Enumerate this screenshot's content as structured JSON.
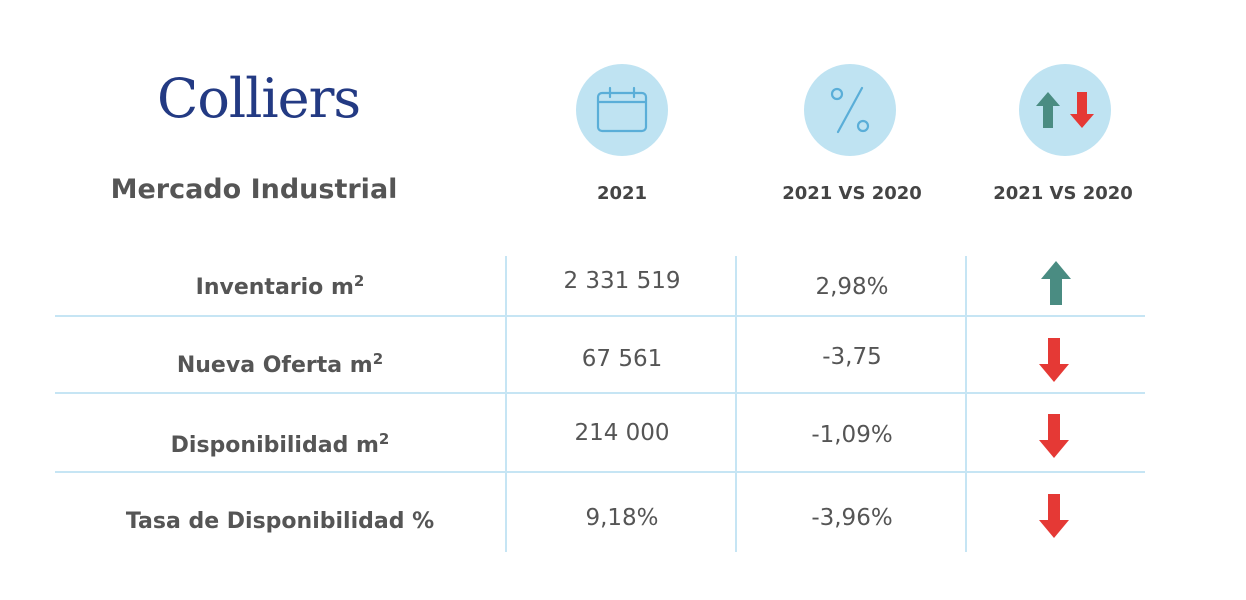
{
  "brand": {
    "logo_text": "Colliers"
  },
  "icons": {
    "calendar": "calendar-icon",
    "percent": "percent-icon",
    "trend": "up-down-arrows-icon"
  },
  "colors": {
    "brand_blue": "#233a83",
    "icon_circle": "#bfe3f2",
    "up_arrow": "#4a8c82",
    "down_arrow": "#e53935",
    "grid": "#c6e5f4"
  },
  "chart_data": {
    "type": "table",
    "title": "Mercado Industrial",
    "columns": [
      "2021",
      "2021 VS 2020",
      "2021 VS 2020"
    ],
    "rows": [
      {
        "label": "Inventario m",
        "unit_sup": "2",
        "value_2021": "2 331 519",
        "change": "2,98%",
        "trend": "up"
      },
      {
        "label": "Nueva Oferta m",
        "unit_sup": "2",
        "value_2021": "67 561",
        "change": "-3,75",
        "trend": "down"
      },
      {
        "label": "Disponibilidad m",
        "unit_sup": "2",
        "value_2021": "214 000",
        "change": "-1,09%",
        "trend": "down"
      },
      {
        "label": "Tasa de Disponibilidad %",
        "unit_sup": "",
        "value_2021": "9,18%",
        "change": "-3,96%",
        "trend": "down"
      }
    ]
  }
}
